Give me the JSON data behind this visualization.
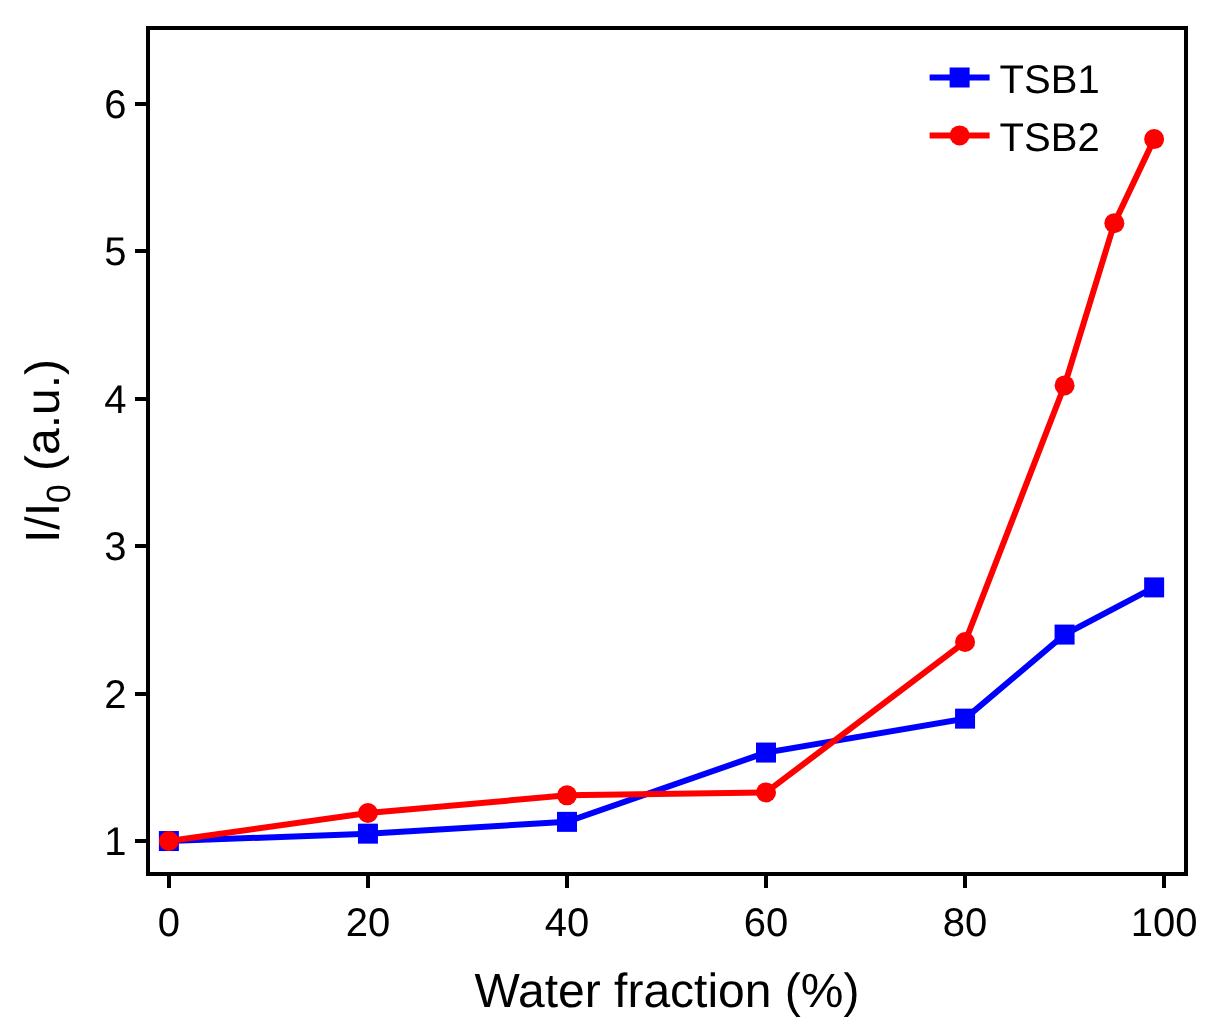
{
  "chart_data": {
    "type": "line",
    "xlabel": "Water fraction (%)",
    "ylabel": "I/I$_{0}$ (a.u.)",
    "xlim": [
      -1.9,
      102
    ],
    "xticks": [
      0,
      20,
      40,
      60,
      80,
      100
    ],
    "ylim": [
      0.79,
      6.5
    ],
    "yticks": [
      1,
      2,
      3,
      4,
      5,
      6
    ],
    "legend": "top right",
    "line_style": "solid",
    "series": [
      {
        "name": "TSB1",
        "color": "#0000ff",
        "marker": "square",
        "x": [
          0,
          20,
          40,
          60,
          80,
          90,
          99
        ],
        "values": [
          1.0,
          1.05,
          1.13,
          1.6,
          1.83,
          2.4,
          2.72
        ]
      },
      {
        "name": "TSB2",
        "color": "#ff0000",
        "marker": "circle",
        "x": [
          0,
          20,
          40,
          60,
          80,
          90,
          95,
          99
        ],
        "values": [
          1.0,
          1.19,
          1.31,
          1.33,
          2.35,
          4.09,
          5.19,
          5.76
        ]
      }
    ]
  }
}
